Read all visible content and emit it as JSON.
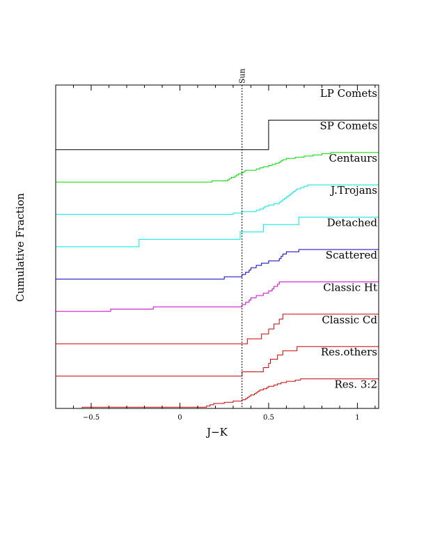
{
  "chart_data": {
    "type": "line",
    "xlabel": "J−K",
    "ylabel": "Cumulative Fraction",
    "xlim": [
      -0.7,
      1.12
    ],
    "x_ticks": [
      -0.5,
      0,
      0.5,
      1
    ],
    "x_tick_labels": [
      "−0.5",
      "0",
      "0.5",
      "1"
    ],
    "vline": {
      "x": 0.35,
      "label": "Sun",
      "style": "dotted"
    },
    "grid": false,
    "series": [
      {
        "name": "LP Comets",
        "color": "#000000",
        "steps": []
      },
      {
        "name": "SP Comets",
        "color": "#000000",
        "steps": [
          0.5
        ]
      },
      {
        "name": "Centaurs",
        "color": "#00dd00",
        "steps": [
          0.18,
          0.27,
          0.28,
          0.29,
          0.31,
          0.32,
          0.33,
          0.35,
          0.36,
          0.37,
          0.43,
          0.45,
          0.47,
          0.5,
          0.52,
          0.54,
          0.56,
          0.57,
          0.58,
          0.6,
          0.65,
          0.7,
          0.75,
          0.8,
          0.85
        ]
      },
      {
        "name": "J.Trojans",
        "color": "#00e5e5",
        "steps": [
          0.3,
          0.35,
          0.43,
          0.45,
          0.47,
          0.48,
          0.5,
          0.53,
          0.56,
          0.57,
          0.58,
          0.59,
          0.6,
          0.61,
          0.62,
          0.63,
          0.64,
          0.65,
          0.66,
          0.68,
          0.7,
          0.72
        ]
      },
      {
        "name": "Detached",
        "color": "#00e5e5",
        "steps": [
          -0.23,
          0.34,
          0.47,
          0.67
        ]
      },
      {
        "name": "Scattered",
        "color": "#0000cc",
        "steps": [
          0.25,
          0.35,
          0.37,
          0.39,
          0.4,
          0.43,
          0.46,
          0.5,
          0.56,
          0.57,
          0.58,
          0.6,
          0.67
        ]
      },
      {
        "name": "Classic Ht",
        "color": "#cc00cc",
        "steps": [
          -0.39,
          -0.15,
          0.35,
          0.37,
          0.39,
          0.4,
          0.43,
          0.47,
          0.5,
          0.52,
          0.53,
          0.55,
          0.56
        ]
      },
      {
        "name": "Classic Cd",
        "color": "#cc0000",
        "steps": [
          0.38,
          0.46,
          0.5,
          0.53,
          0.56,
          0.58
        ]
      },
      {
        "name": "Res.others",
        "color": "#cc0000",
        "steps": [
          0.35,
          0.47,
          0.5,
          0.51,
          0.55,
          0.58,
          0.66
        ]
      },
      {
        "name": "Res. 3:2",
        "color": "#cc0000",
        "steps": [
          -0.55,
          0.15,
          0.17,
          0.19,
          0.25,
          0.3,
          0.35,
          0.37,
          0.38,
          0.39,
          0.4,
          0.42,
          0.43,
          0.44,
          0.45,
          0.47,
          0.49,
          0.5,
          0.53,
          0.55,
          0.57,
          0.6,
          0.65,
          0.68
        ]
      }
    ]
  }
}
